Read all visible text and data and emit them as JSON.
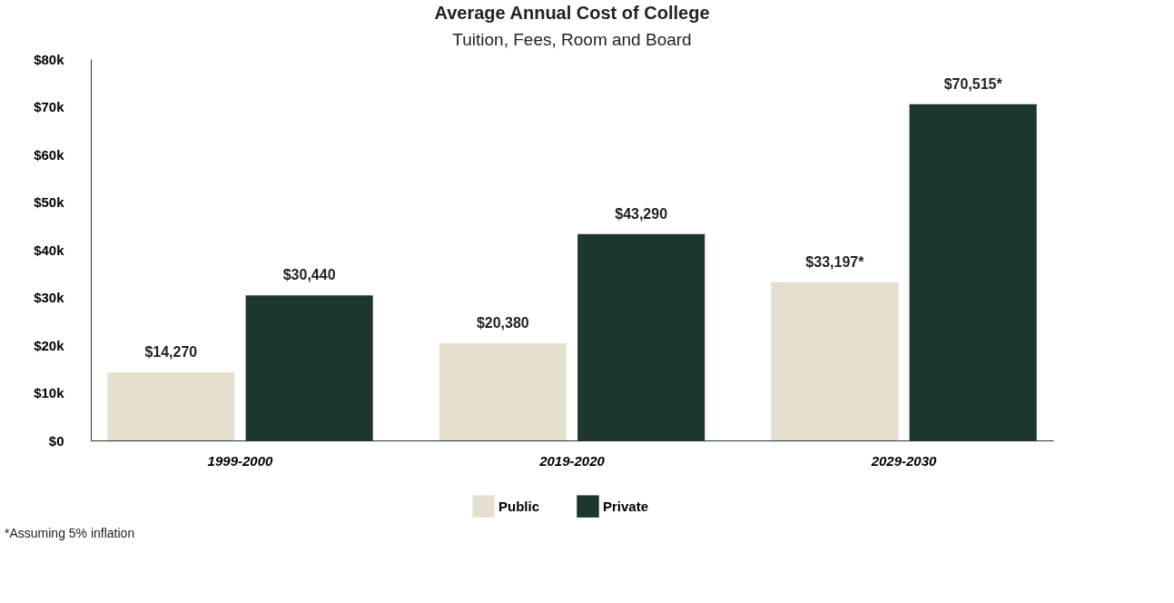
{
  "chart_data": {
    "type": "bar",
    "title": "Average Annual Cost of College",
    "subtitle": "Tuition, Fees, Room and Board",
    "categories": [
      "1999-2000",
      "2019-2020",
      "2029-2030"
    ],
    "series": [
      {
        "name": "Public",
        "color": "#e4dfcf",
        "values": [
          14270,
          20380,
          33197
        ],
        "value_labels": [
          "$14,270",
          "$20,380",
          "$33,197*"
        ]
      },
      {
        "name": "Private",
        "color": "#1e372b",
        "values": [
          30440,
          43290,
          70515
        ],
        "value_labels": [
          "$30,440",
          "$43,290",
          "$70,515*"
        ]
      }
    ],
    "ylim": [
      0,
      80000
    ],
    "yticks": [
      {
        "value": 0,
        "label": "$0"
      },
      {
        "value": 10000,
        "label": "$10k"
      },
      {
        "value": 20000,
        "label": "$20k"
      },
      {
        "value": 30000,
        "label": "$30k"
      },
      {
        "value": 40000,
        "label": "$40k"
      },
      {
        "value": 50000,
        "label": "$50k"
      },
      {
        "value": 60000,
        "label": "$60k"
      },
      {
        "value": 70000,
        "label": "$70k"
      },
      {
        "value": 80000,
        "label": "$80k"
      }
    ],
    "grid": false,
    "legend": "bottom",
    "annotations": [
      "*Assuming 5% inflation"
    ]
  }
}
